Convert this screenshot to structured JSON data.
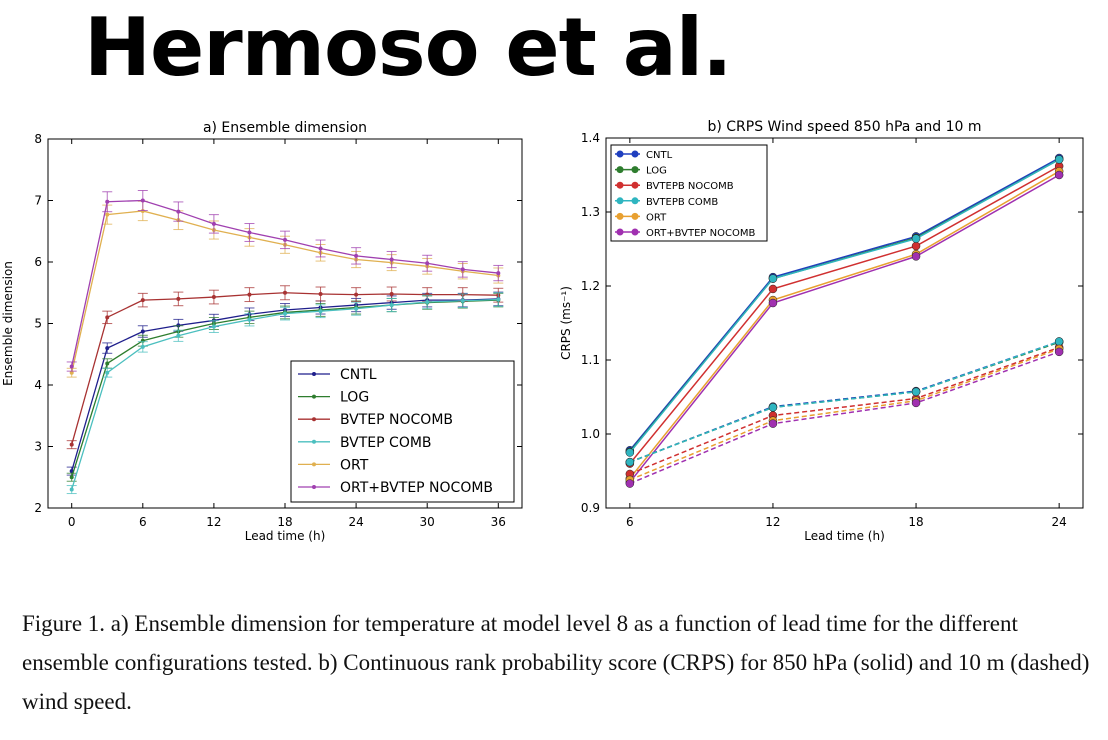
{
  "slide_title": "Hermoso et al.",
  "caption": "Figure 1. a) Ensemble dimension for temperature at model level 8 as a function of lead time for the different ensemble configurations tested. b) Continuous rank probability score (CRPS) for 850 hPa (solid) and 10 m (dashed) wind speed.",
  "chart_data": [
    {
      "type": "line",
      "title": "a) Ensemble dimension",
      "xlabel": "Lead time (h)",
      "ylabel": "Ensemble dimension",
      "xlim": [
        -2,
        38
      ],
      "ylim": [
        2,
        8
      ],
      "xticks": [
        0,
        6,
        12,
        18,
        24,
        30,
        36
      ],
      "yticks": [
        2,
        3,
        4,
        5,
        6,
        7,
        8
      ],
      "grid": false,
      "error_bars": true,
      "legend_position": "lower-right",
      "x": [
        0,
        3,
        6,
        9,
        12,
        15,
        18,
        21,
        24,
        27,
        30,
        33,
        36
      ],
      "series": [
        {
          "name": "CNTL",
          "color": "#1f1f8c",
          "values": [
            2.6,
            4.6,
            4.87,
            4.97,
            5.05,
            5.15,
            5.22,
            5.26,
            5.3,
            5.34,
            5.38,
            5.38,
            5.4
          ]
        },
        {
          "name": "LOG",
          "color": "#2e7d2e",
          "values": [
            2.5,
            4.35,
            4.72,
            4.87,
            5.0,
            5.1,
            5.18,
            5.22,
            5.26,
            5.3,
            5.34,
            5.36,
            5.38
          ]
        },
        {
          "name": "BVTEP NOCOMB",
          "color": "#a83232",
          "values": [
            3.03,
            5.1,
            5.38,
            5.4,
            5.43,
            5.47,
            5.5,
            5.48,
            5.47,
            5.48,
            5.47,
            5.47,
            5.46
          ]
        },
        {
          "name": "BVTEP COMB",
          "color": "#4bbfbf",
          "values": [
            2.3,
            4.2,
            4.62,
            4.8,
            4.95,
            5.06,
            5.16,
            5.2,
            5.24,
            5.3,
            5.35,
            5.37,
            5.39
          ]
        },
        {
          "name": "ORT",
          "color": "#e0b050",
          "values": [
            4.2,
            6.77,
            6.83,
            6.68,
            6.52,
            6.4,
            6.28,
            6.15,
            6.04,
            5.99,
            5.93,
            5.85,
            5.78
          ]
        },
        {
          "name": "ORT+BVTEP NOCOMB",
          "color": "#a040b0",
          "values": [
            4.3,
            6.98,
            7.0,
            6.82,
            6.62,
            6.48,
            6.36,
            6.22,
            6.1,
            6.04,
            5.98,
            5.88,
            5.82
          ]
        }
      ]
    },
    {
      "type": "line",
      "title": "b) CRPS Wind speed 850 hPa and 10 m",
      "xlabel": "Lead time (h)",
      "ylabel": "CRPS (ms⁻¹)",
      "xlim": [
        5,
        25
      ],
      "ylim": [
        0.9,
        1.4
      ],
      "xticks": [
        6,
        12,
        18,
        24
      ],
      "yticks": [
        0.9,
        1.0,
        1.1,
        1.2,
        1.3,
        1.4
      ],
      "grid": false,
      "legend_position": "upper-left",
      "x": [
        6,
        12,
        18,
        24
      ],
      "series": [
        {
          "name": "CNTL",
          "color": "#1f3fbf",
          "level": "850 hPa",
          "style": "solid",
          "values": [
            0.978,
            1.212,
            1.267,
            1.373
          ]
        },
        {
          "name": "LOG",
          "color": "#2e7d2e",
          "level": "850 hPa",
          "style": "solid",
          "values": [
            0.976,
            1.21,
            1.265,
            1.371
          ]
        },
        {
          "name": "BVTEPB NOCOMB",
          "color": "#d03030",
          "level": "850 hPa",
          "style": "solid",
          "values": [
            0.96,
            1.196,
            1.254,
            1.362
          ]
        },
        {
          "name": "BVTEPB COMB",
          "color": "#2fb5c0",
          "level": "850 hPa",
          "style": "solid",
          "values": [
            0.975,
            1.21,
            1.264,
            1.371
          ]
        },
        {
          "name": "ORT",
          "color": "#e8a030",
          "level": "850 hPa",
          "style": "solid",
          "values": [
            0.94,
            1.181,
            1.243,
            1.355
          ]
        },
        {
          "name": "ORT+BVTEP NOCOMB",
          "color": "#a030b0",
          "level": "850 hPa",
          "style": "solid",
          "values": [
            0.935,
            1.177,
            1.24,
            1.35
          ]
        },
        {
          "name": "CNTL",
          "color": "#1f3fbf",
          "level": "10 m",
          "style": "dashed",
          "values": [
            0.962,
            1.037,
            1.058,
            1.125
          ]
        },
        {
          "name": "LOG",
          "color": "#2e7d2e",
          "level": "10 m",
          "style": "dashed",
          "values": [
            0.962,
            1.036,
            1.057,
            1.124
          ]
        },
        {
          "name": "BVTEPB NOCOMB",
          "color": "#d03030",
          "level": "10 m",
          "style": "dashed",
          "values": [
            0.946,
            1.025,
            1.048,
            1.117
          ]
        },
        {
          "name": "BVTEPB COMB",
          "color": "#2fb5c0",
          "level": "10 m",
          "style": "dashed",
          "values": [
            0.962,
            1.036,
            1.057,
            1.125
          ]
        },
        {
          "name": "ORT",
          "color": "#e8a030",
          "level": "10 m",
          "style": "dashed",
          "values": [
            0.938,
            1.018,
            1.045,
            1.115
          ]
        },
        {
          "name": "ORT+BVTEP NOCOMB",
          "color": "#a030b0",
          "level": "10 m",
          "style": "dashed",
          "values": [
            0.933,
            1.014,
            1.042,
            1.111
          ]
        }
      ]
    }
  ]
}
